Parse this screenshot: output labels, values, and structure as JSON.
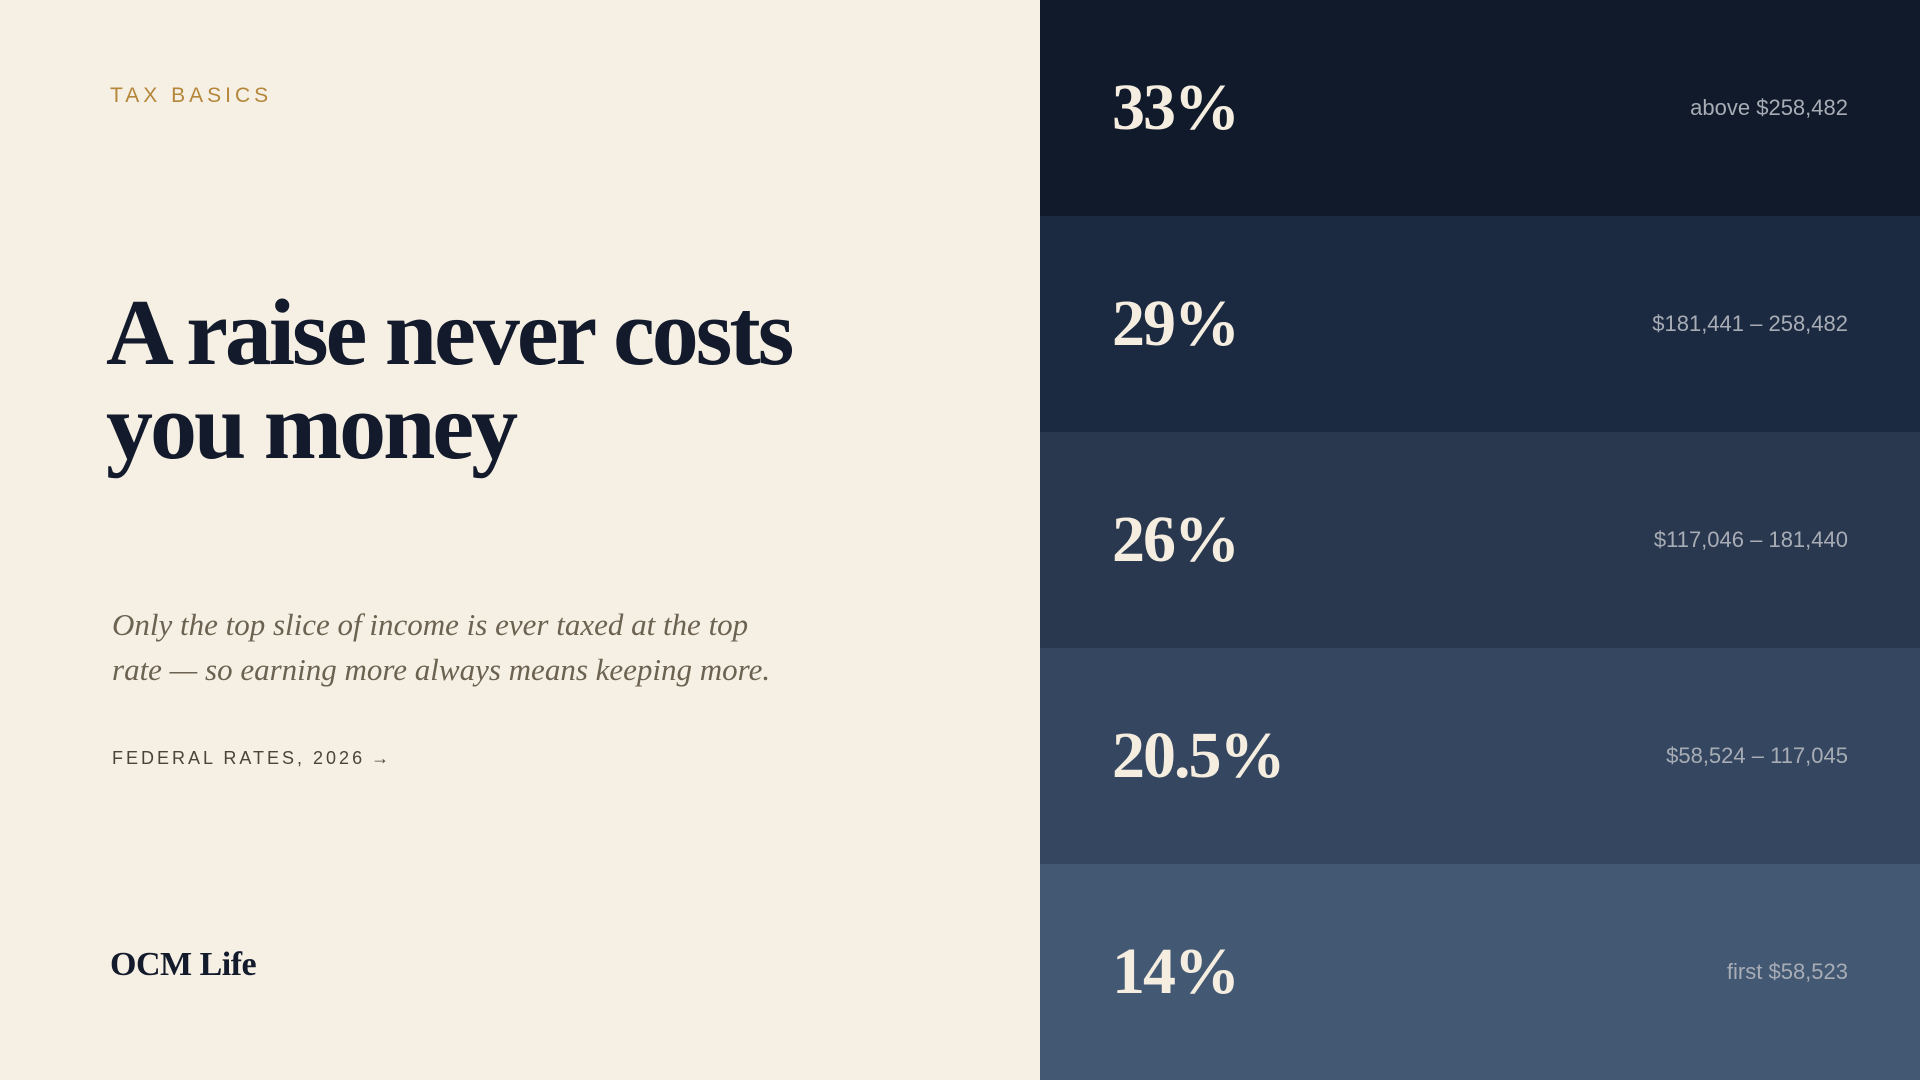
{
  "eyebrow": "TAX BASICS",
  "headline": {
    "line1": "A raise never costs",
    "line2": "you money"
  },
  "subtext": {
    "line1": "Only the top slice of income is ever taxed at the top",
    "line2": "rate — so earning more always means keeping more."
  },
  "link": {
    "label": "FEDERAL RATES, 2026",
    "arrow": "→"
  },
  "brand": "OCM Life",
  "colors": {
    "background": "#f6efe3",
    "accent": "#b4863a",
    "ink": "#121a2c"
  },
  "brackets": [
    {
      "rate": "33%",
      "range": "above $258,482",
      "color": "#101a2b"
    },
    {
      "rate": "29%",
      "range": "$181,441 – 258,482",
      "color": "#1c2a41"
    },
    {
      "rate": "26%",
      "range": "$117,046 – 181,440",
      "color": "#29384f"
    },
    {
      "rate": "20.5%",
      "range": "$58,524 – 117,045",
      "color": "#354760"
    },
    {
      "rate": "14%",
      "range": "first $58,523",
      "color": "#435873"
    }
  ]
}
